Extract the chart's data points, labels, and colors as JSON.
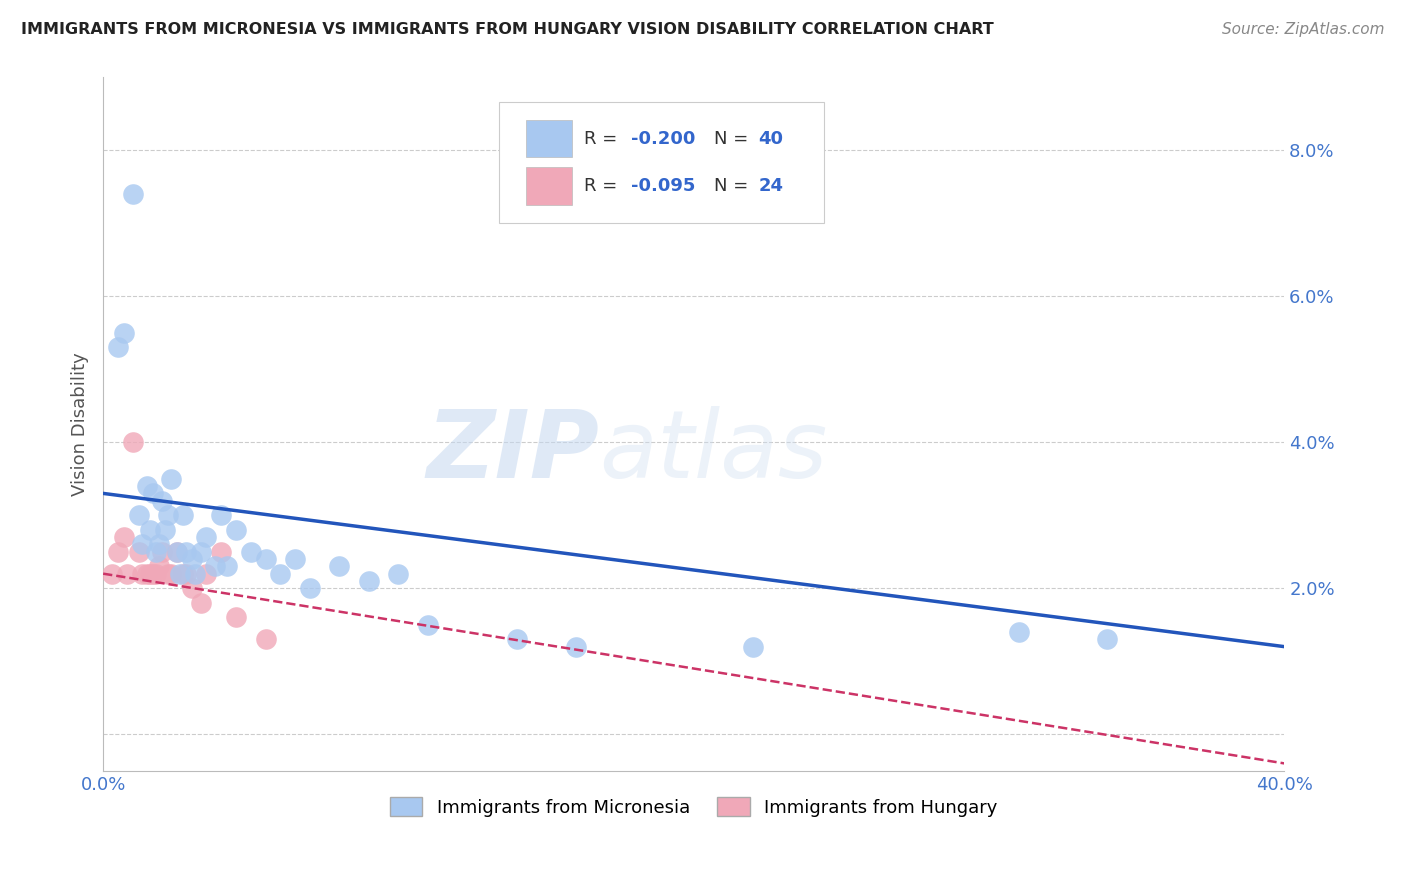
{
  "title": "IMMIGRANTS FROM MICRONESIA VS IMMIGRANTS FROM HUNGARY VISION DISABILITY CORRELATION CHART",
  "source": "Source: ZipAtlas.com",
  "ylabel": "Vision Disability",
  "xlim": [
    0.0,
    0.4
  ],
  "ylim": [
    -0.005,
    0.09
  ],
  "xticks": [
    0.0,
    0.1,
    0.2,
    0.3,
    0.4
  ],
  "yticks": [
    0.0,
    0.02,
    0.04,
    0.06,
    0.08
  ],
  "background_color": "#ffffff",
  "grid_color": "#cccccc",
  "micronesia_color": "#a8c8f0",
  "hungary_color": "#f0a8b8",
  "micronesia_line_color": "#2255bb",
  "hungary_line_color": "#cc3366",
  "R_micronesia": -0.2,
  "N_micronesia": 40,
  "R_hungary": -0.095,
  "N_hungary": 24,
  "micronesia_x": [
    0.005,
    0.007,
    0.01,
    0.012,
    0.013,
    0.015,
    0.016,
    0.017,
    0.018,
    0.019,
    0.02,
    0.021,
    0.022,
    0.023,
    0.025,
    0.026,
    0.027,
    0.028,
    0.03,
    0.031,
    0.033,
    0.035,
    0.038,
    0.04,
    0.042,
    0.045,
    0.05,
    0.055,
    0.06,
    0.065,
    0.07,
    0.08,
    0.09,
    0.1,
    0.11,
    0.14,
    0.16,
    0.22,
    0.31,
    0.34
  ],
  "micronesia_y": [
    0.053,
    0.055,
    0.074,
    0.03,
    0.026,
    0.034,
    0.028,
    0.033,
    0.025,
    0.026,
    0.032,
    0.028,
    0.03,
    0.035,
    0.025,
    0.022,
    0.03,
    0.025,
    0.024,
    0.022,
    0.025,
    0.027,
    0.023,
    0.03,
    0.023,
    0.028,
    0.025,
    0.024,
    0.022,
    0.024,
    0.02,
    0.023,
    0.021,
    0.022,
    0.015,
    0.013,
    0.012,
    0.012,
    0.014,
    0.013
  ],
  "hungary_x": [
    0.003,
    0.005,
    0.007,
    0.008,
    0.01,
    0.012,
    0.013,
    0.015,
    0.016,
    0.017,
    0.018,
    0.019,
    0.02,
    0.022,
    0.023,
    0.025,
    0.027,
    0.028,
    0.03,
    0.033,
    0.035,
    0.04,
    0.045,
    0.055
  ],
  "hungary_y": [
    0.022,
    0.025,
    0.027,
    0.022,
    0.04,
    0.025,
    0.022,
    0.022,
    0.022,
    0.022,
    0.022,
    0.023,
    0.025,
    0.022,
    0.022,
    0.025,
    0.022,
    0.022,
    0.02,
    0.018,
    0.022,
    0.025,
    0.016,
    0.013
  ]
}
